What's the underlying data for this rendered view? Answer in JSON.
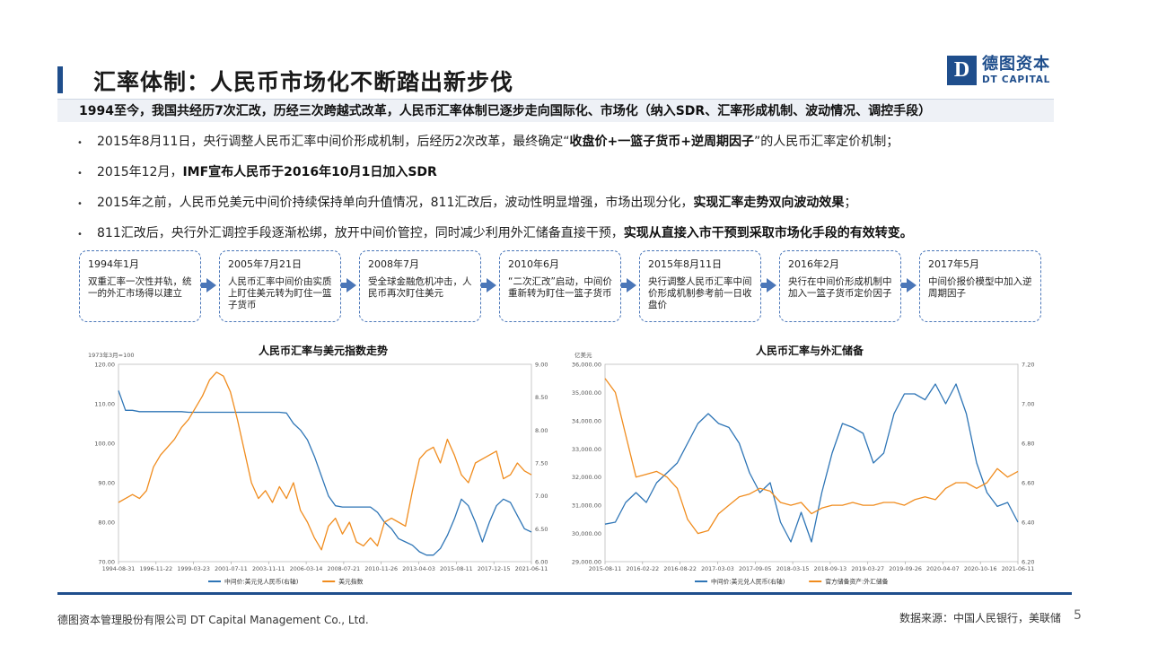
{
  "header": {
    "title": "汇率体制：人民币市场化不断踏出新步伐",
    "logo_mark": "D",
    "logo_cn": "德图资本",
    "logo_en": "DT CAPITAL"
  },
  "band_text": "1994至今，我国共经历7次汇改，历经三次跨越式改革，人民币汇率体制已逐步走向国际化、市场化（纳入SDR、汇率形成机制、波动情况、调控手段）",
  "bullets": [
    {
      "pre": "2015年8月11日，央行调整人民币汇率中间价形成机制，后经历2次改革，最终确定“",
      "bold": "收盘价+一篮子货币+逆周期因子",
      "post": "”的人民币汇率定价机制；"
    },
    {
      "pre": "2015年12月，",
      "bold": "IMF宣布人民币于2016年10月1日加入SDR",
      "post": ""
    },
    {
      "pre": "2015年之前，人民币兑美元中间价持续保持单向升值情况，811汇改后，波动性明显增强，市场出现分化，",
      "bold": "实现汇率走势双向波动效果",
      "post": "；"
    },
    {
      "pre": "811汇改后，央行外汇调控手段逐渐松绑，放开中间价管控，同时减少利用外汇储备直接干预，",
      "bold": "实现从直接入市干预到采取市场化手段的有效转变。",
      "post": ""
    }
  ],
  "timeline": [
    {
      "date": "1994年1月",
      "desc": "双重汇率一次性并轨，统一的外汇市场得以建立"
    },
    {
      "date": "2005年7月21日",
      "desc": "人民币汇率中间价由实质上盯住美元转为盯住一篮子货币"
    },
    {
      "date": "2008年7月",
      "desc": "受全球金融危机冲击，人民币再次盯住美元"
    },
    {
      "date": "2010年6月",
      "desc": "“二次汇改”启动，中间价重新转为盯住一篮子货币"
    },
    {
      "date": "2015年8月11日",
      "desc": "央行调整人民币汇率中间价形成机制参考前一日收盘价"
    },
    {
      "date": "2016年2月",
      "desc": "央行在中间价形成机制中加入一篮子货币定价因子"
    },
    {
      "date": "2017年5月",
      "desc": "中间价报价模型中加入逆周期因子"
    }
  ],
  "chart_data": [
    {
      "type": "line",
      "title": "人民币汇率与美元指数走势",
      "left_unit": "1973年3月=100",
      "x_ticks": [
        "1994-08-31",
        "1996-11-22",
        "1999-03-23",
        "2001-07-11",
        "2003-11-11",
        "2006-03-14",
        "2008-07-21",
        "2010-11-26",
        "2013-04-03",
        "2015-08-11",
        "2017-12-15",
        "2021-06-11"
      ],
      "y_left_ticks": [
        "70.00",
        "80.00",
        "90.00",
        "100.00",
        "110.00",
        "120.00"
      ],
      "y_left_range": [
        70,
        120
      ],
      "y_right_ticks": [
        "6.00",
        "6.50",
        "7.00",
        "7.50",
        "8.00",
        "8.50",
        "9.00"
      ],
      "y_right_range": [
        6.0,
        9.0
      ],
      "series": [
        {
          "name": "中间价:美元兑人民币(右轴)",
          "color": "#2e75b6",
          "axis": "right",
          "values": [
            8.6,
            8.3,
            8.3,
            8.28,
            8.28,
            8.28,
            8.28,
            8.28,
            8.28,
            8.28,
            8.27,
            8.27,
            8.27,
            8.27,
            8.27,
            8.27,
            8.27,
            8.27,
            8.27,
            8.27,
            8.27,
            8.27,
            8.27,
            8.27,
            8.26,
            8.1,
            8.0,
            7.85,
            7.6,
            7.3,
            7.0,
            6.85,
            6.83,
            6.83,
            6.83,
            6.83,
            6.83,
            6.75,
            6.6,
            6.5,
            6.35,
            6.3,
            6.25,
            6.15,
            6.1,
            6.1,
            6.2,
            6.4,
            6.65,
            6.95,
            6.85,
            6.6,
            6.3,
            6.6,
            6.85,
            6.95,
            6.9,
            6.7,
            6.5,
            6.45
          ]
        },
        {
          "name": "美元指数",
          "color": "#f08c1e",
          "axis": "left",
          "values": [
            85,
            86,
            87,
            86,
            88,
            94,
            97,
            99,
            101,
            104,
            106,
            109,
            112,
            116,
            118,
            117,
            113,
            106,
            98,
            90,
            86,
            88,
            85,
            89,
            86,
            90,
            83,
            80,
            76,
            73,
            79,
            81,
            77,
            80,
            75,
            74,
            76,
            74,
            80,
            81,
            80,
            79,
            88,
            96,
            98,
            99,
            95,
            101,
            97,
            92,
            90,
            95,
            96,
            97,
            98,
            91,
            92,
            95,
            93,
            92
          ]
        }
      ]
    },
    {
      "type": "line",
      "title": "人民币汇率与外汇储备",
      "left_unit": "亿美元",
      "x_ticks": [
        "2015-08-11",
        "2016-02-22",
        "2016-08-22",
        "2017-03-03",
        "2017-09-05",
        "2018-03-15",
        "2018-09-13",
        "2019-03-27",
        "2019-09-26",
        "2020-04-07",
        "2020-10-16",
        "2021-06-11"
      ],
      "y_left_ticks": [
        "29,000.00",
        "30,000.00",
        "31,000.00",
        "32,000.00",
        "33,000.00",
        "34,000.00",
        "35,000.00",
        "36,000.00"
      ],
      "y_left_range": [
        29000,
        36000
      ],
      "y_right_ticks": [
        "6.20",
        "6.40",
        "6.60",
        "6.80",
        "7.00",
        "7.20"
      ],
      "y_right_range": [
        6.2,
        7.2
      ],
      "series": [
        {
          "name": "中间价:美元兑人民币(右轴)",
          "color": "#2e75b6",
          "axis": "right",
          "values": [
            6.39,
            6.4,
            6.5,
            6.55,
            6.5,
            6.6,
            6.65,
            6.7,
            6.8,
            6.9,
            6.95,
            6.9,
            6.88,
            6.8,
            6.65,
            6.55,
            6.6,
            6.4,
            6.3,
            6.45,
            6.3,
            6.55,
            6.75,
            6.9,
            6.88,
            6.85,
            6.7,
            6.75,
            6.95,
            7.05,
            7.05,
            7.02,
            7.1,
            7.0,
            7.1,
            6.95,
            6.7,
            6.55,
            6.48,
            6.5,
            6.4
          ]
        },
        {
          "name": "官方储备资产:外汇储备",
          "color": "#f08c1e",
          "axis": "left",
          "values": [
            35500,
            35000,
            33500,
            32000,
            32100,
            32200,
            32000,
            31600,
            30500,
            30000,
            30100,
            30700,
            31000,
            31300,
            31400,
            31600,
            31500,
            31100,
            31000,
            31100,
            30700,
            30900,
            31000,
            31000,
            31100,
            31000,
            31000,
            31100,
            31100,
            31000,
            31200,
            31300,
            31200,
            31600,
            31800,
            31800,
            31600,
            31800,
            32300,
            32000,
            32200
          ]
        }
      ]
    }
  ],
  "footer": {
    "company": "德图资本管理股份有限公司  DT Capital Management  Co., Ltd.",
    "source": "数据来源：中国人民银行，美联储",
    "page": "5"
  }
}
